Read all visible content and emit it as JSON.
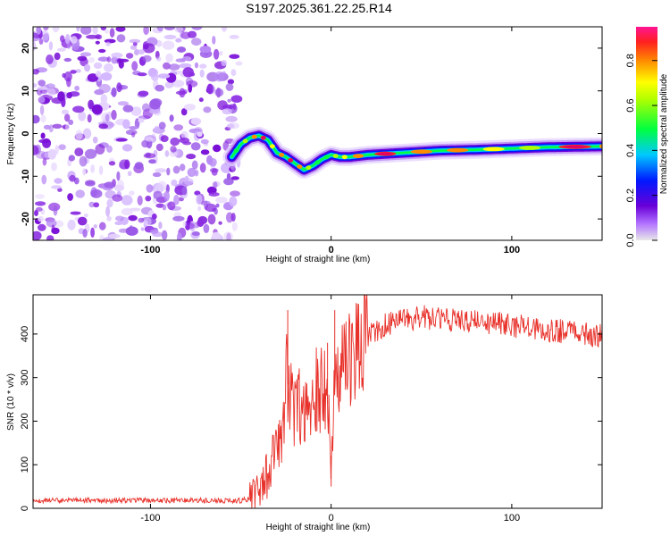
{
  "colors": {
    "frame": "#000000",
    "snr_line": "#e8312a",
    "background": "#ffffff",
    "noise_purple": "#8a2be2",
    "colormap": [
      "#e8e8e8",
      "#6a00d8",
      "#0018ff",
      "#00c8ff",
      "#00ff40",
      "#ffff00",
      "#ff8c00",
      "#ff2020",
      "#ff1493"
    ]
  },
  "chart_data": [
    {
      "type": "heatmap",
      "title": "S197.2025.361.22.25.R14",
      "xlabel": "Height of straight line (km)",
      "ylabel": "Frequency (Hz)",
      "xlim": [
        -165,
        150
      ],
      "ylim": [
        -25,
        25
      ],
      "x_ticks": [
        -100,
        0,
        100
      ],
      "y_ticks": [
        -20,
        -10,
        0,
        10,
        20
      ],
      "noise_region_x": [
        -165,
        -55
      ],
      "ridge": {
        "x": [
          -55,
          -50,
          -45,
          -40,
          -35,
          -30,
          -25,
          -20,
          -15,
          -10,
          -5,
          0,
          5,
          10,
          20,
          40,
          60,
          80,
          100,
          120,
          150
        ],
        "frequency": [
          -5.5,
          -2.5,
          -1.0,
          -0.5,
          -1.5,
          -4.5,
          -5.5,
          -7.0,
          -8.5,
          -7.5,
          -6.0,
          -5.0,
          -5.5,
          -5.5,
          -5.0,
          -4.5,
          -4.0,
          -3.8,
          -3.5,
          -3.2,
          -3.0
        ],
        "amplitude": [
          0.3,
          0.6,
          0.8,
          0.85,
          0.7,
          0.75,
          0.85,
          0.8,
          0.55,
          0.5,
          0.45,
          0.6,
          0.7,
          0.8,
          0.85,
          0.8,
          0.75,
          0.65,
          0.6,
          0.85,
          0.8
        ]
      },
      "colorbar": {
        "label": "Normalized spectral amplitude",
        "range": [
          0.0,
          0.95
        ],
        "ticks": [
          "0.0",
          "0.2",
          "0.4",
          "0.6",
          "0.8"
        ],
        "tick_values": [
          0.0,
          0.2,
          0.4,
          0.6,
          0.8
        ]
      }
    },
    {
      "type": "line",
      "xlabel": "Height of straight line (km)",
      "ylabel": "SNR (10 * v/v)",
      "xlim": [
        -165,
        150
      ],
      "ylim": [
        0,
        490
      ],
      "x_ticks": [
        -100,
        0,
        100
      ],
      "y_ticks": [
        0,
        100,
        200,
        300,
        400
      ],
      "series": [
        {
          "name": "SNR",
          "x": [
            -165,
            -140,
            -120,
            -100,
            -80,
            -60,
            -50,
            -45,
            -40,
            -35,
            -30,
            -27,
            -25,
            -20,
            -15,
            -10,
            -8,
            -5,
            -2,
            0,
            2,
            5,
            10,
            15,
            20,
            30,
            40,
            50,
            60,
            70,
            80,
            90,
            100,
            110,
            120,
            130,
            140,
            150
          ],
          "values": [
            18,
            18,
            18,
            18,
            18,
            18,
            18,
            22,
            35,
            80,
            140,
            180,
            300,
            220,
            250,
            260,
            270,
            280,
            240,
            120,
            280,
            320,
            350,
            380,
            395,
            420,
            430,
            440,
            435,
            430,
            430,
            425,
            420,
            415,
            410,
            405,
            400,
            395
          ]
        }
      ],
      "spikes": [
        {
          "x": -24,
          "value": 455
        },
        {
          "x": -2,
          "value": 380
        },
        {
          "x": 2,
          "value": 455
        },
        {
          "x": 0,
          "value": 50
        }
      ]
    }
  ]
}
